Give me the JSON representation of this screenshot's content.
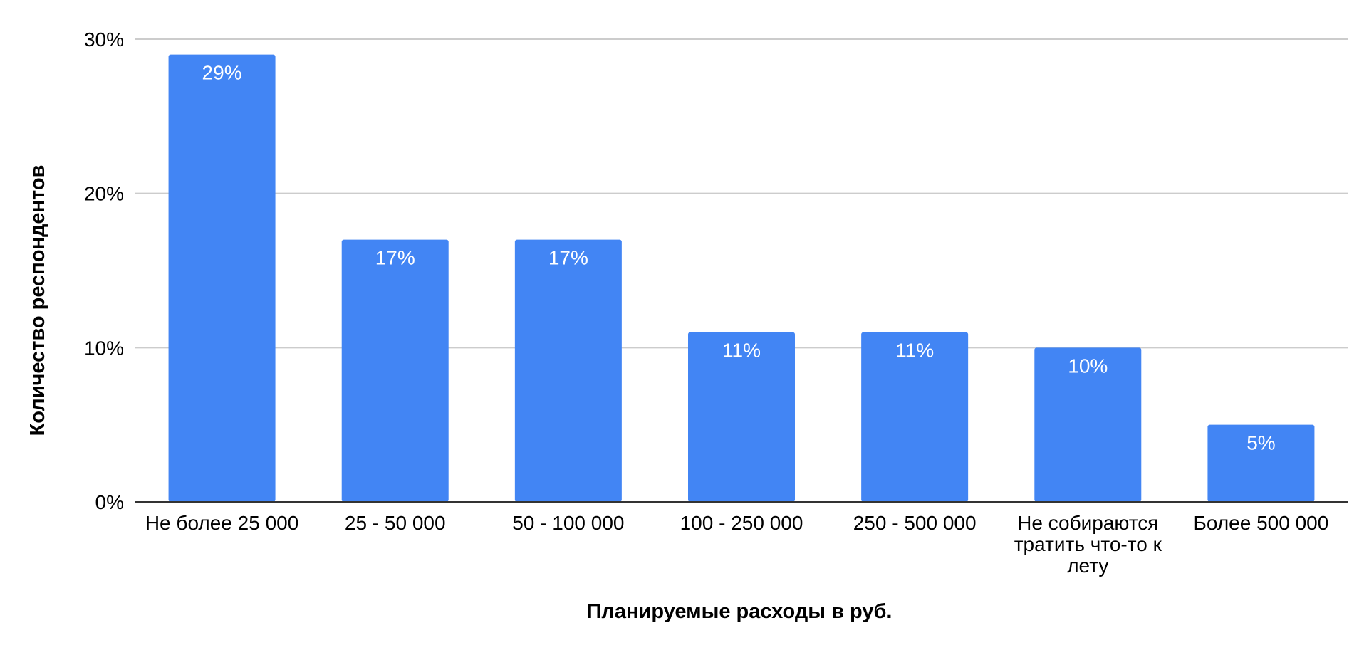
{
  "chart_data": {
    "type": "bar",
    "title": "",
    "xlabel": "Планируемые расходы в руб.",
    "ylabel": "Количество респондентов",
    "categories": [
      [
        "Не более 25 000"
      ],
      [
        "25 - 50 000"
      ],
      [
        "50 - 100 000"
      ],
      [
        "100 - 250 000"
      ],
      [
        "250 - 500 000"
      ],
      [
        "Не собираются",
        "тратить что-то к",
        "лету"
      ],
      [
        "Более 500 000"
      ]
    ],
    "values": [
      29,
      17,
      17,
      11,
      11,
      10,
      5
    ],
    "data_labels": [
      "29%",
      "17%",
      "17%",
      "11%",
      "11%",
      "10%",
      "5%"
    ],
    "ylim": [
      0,
      30
    ],
    "yticks": [
      {
        "value": 0,
        "label": "0%"
      },
      {
        "value": 10,
        "label": "10%"
      },
      {
        "value": 20,
        "label": "20%"
      },
      {
        "value": 30,
        "label": "30%"
      }
    ],
    "grid": true,
    "legend": "none",
    "colors": {
      "bar": "#4285f4",
      "grid": "#cccccc",
      "axis": "#333333"
    }
  }
}
